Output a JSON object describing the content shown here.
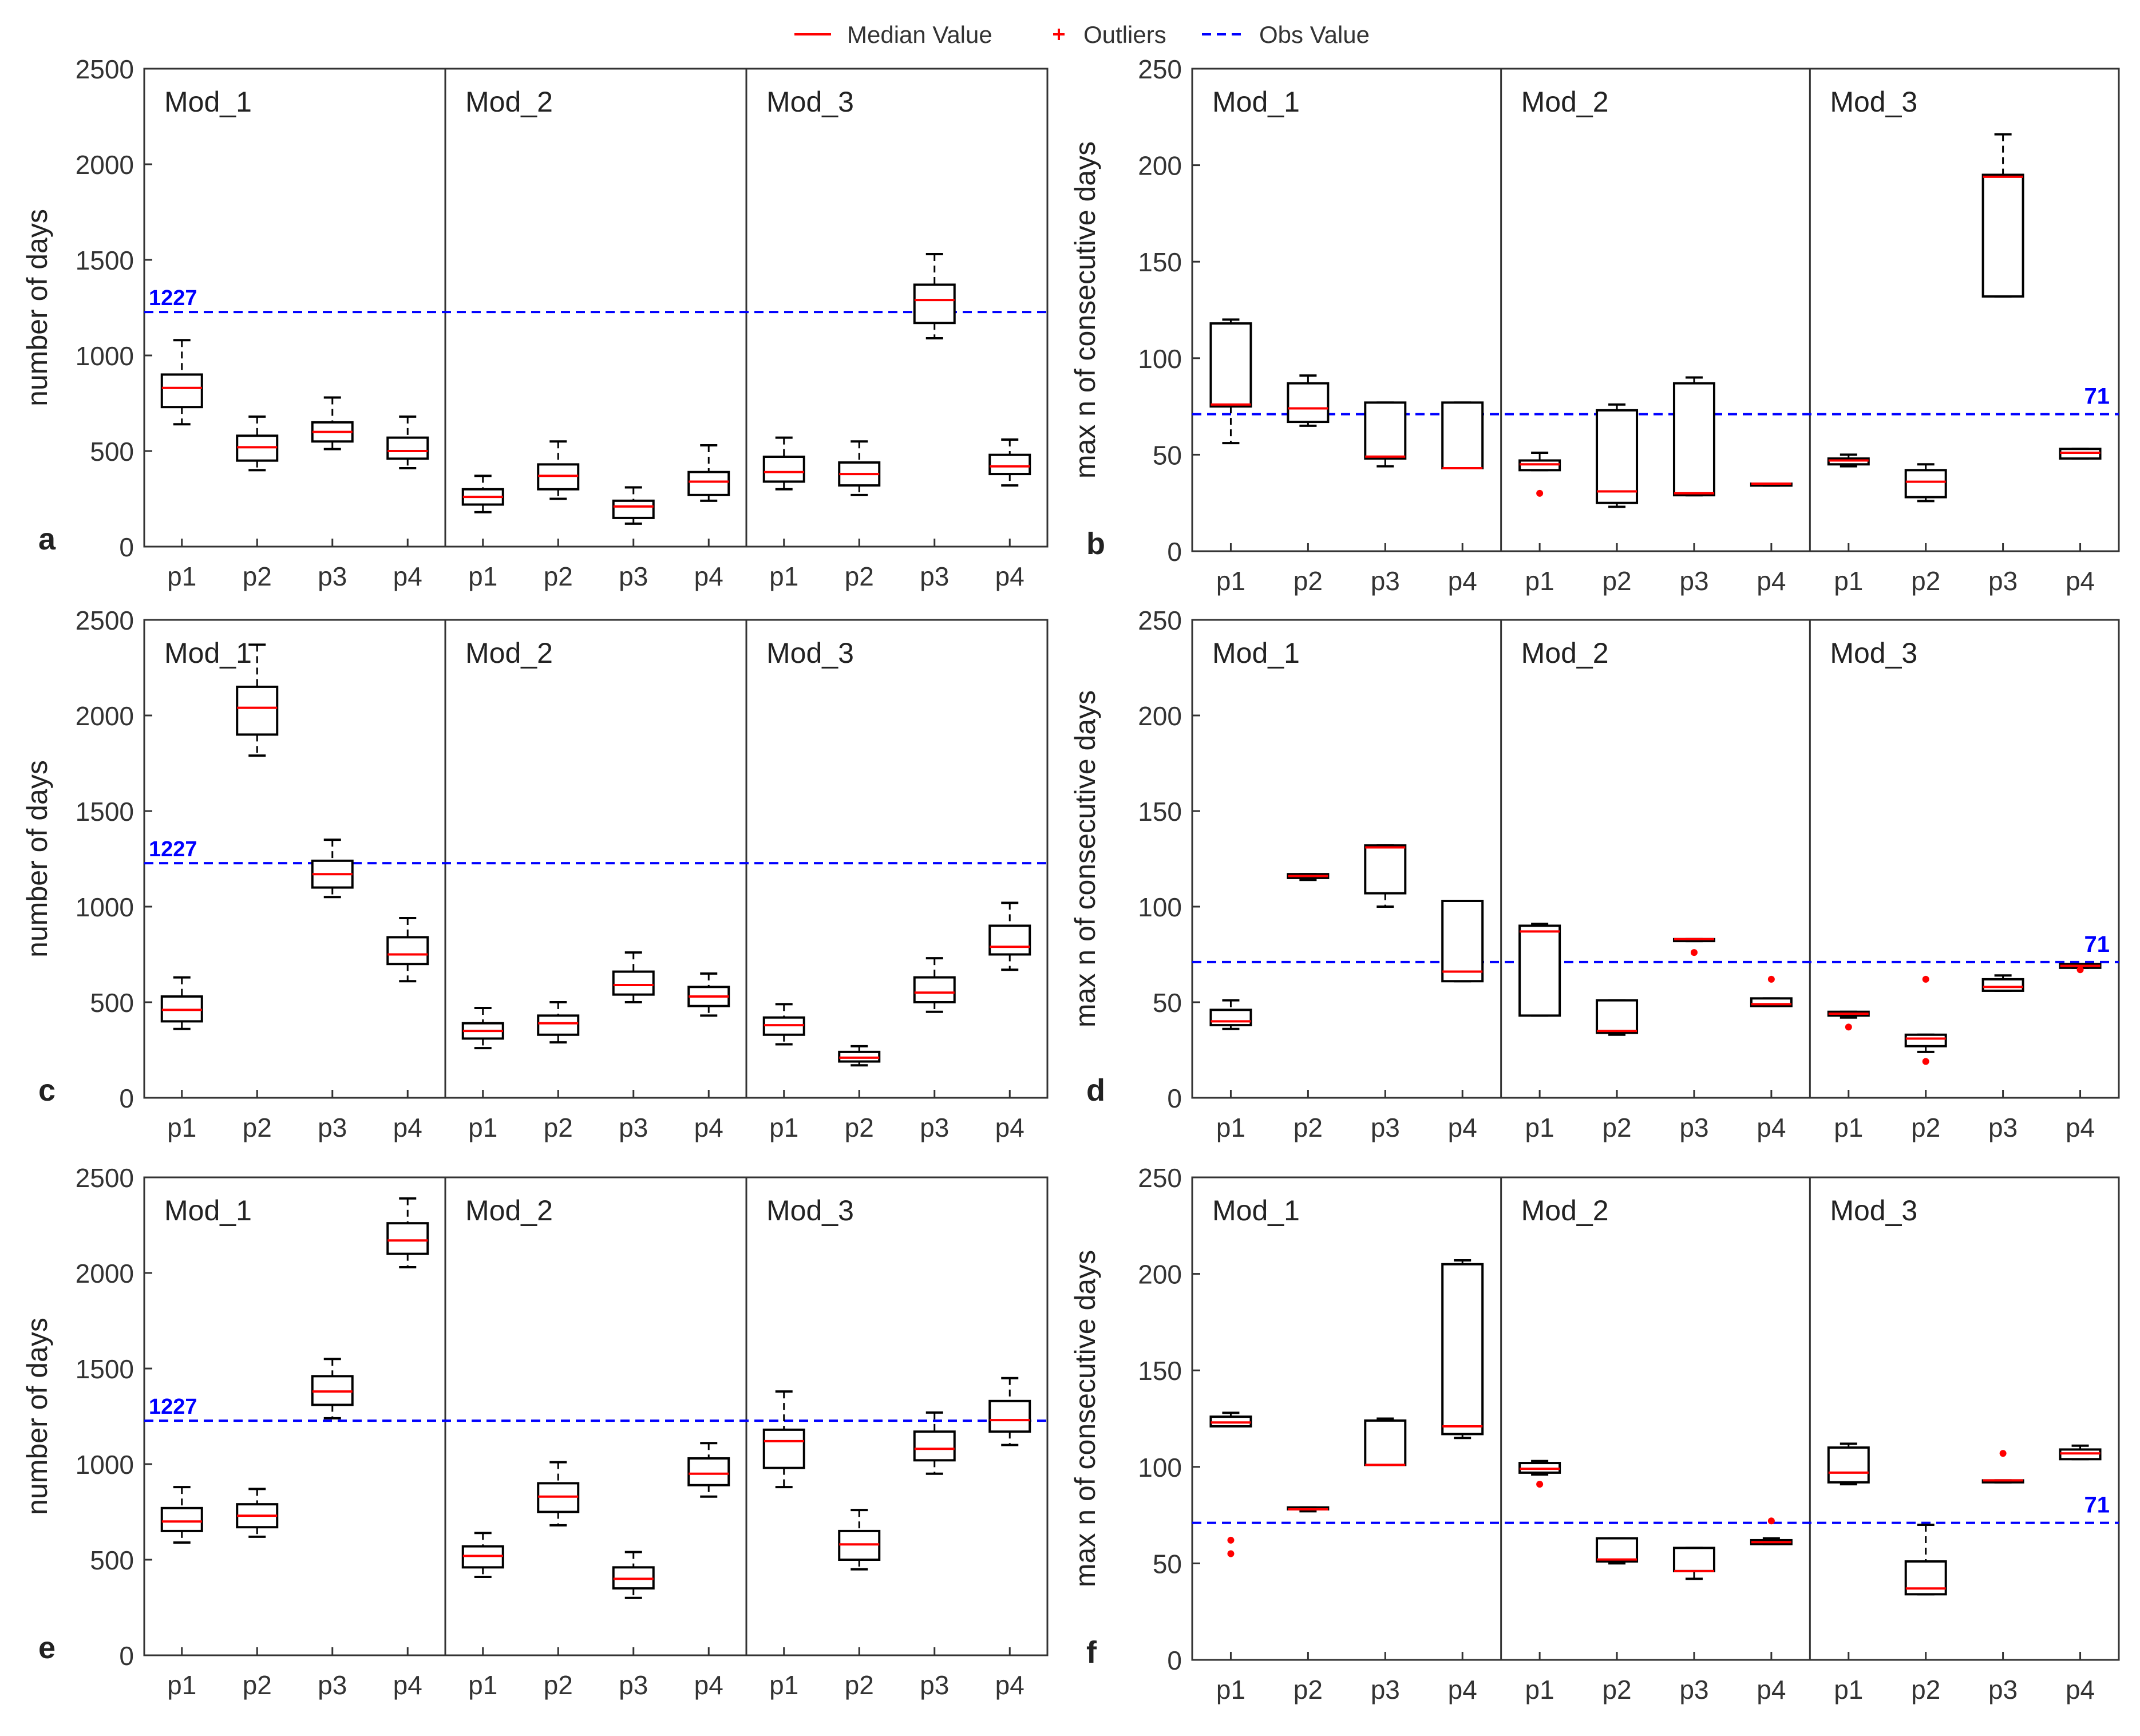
{
  "legend": {
    "placement": "top-center",
    "items": [
      {
        "label": "Median Value",
        "symbol": "line",
        "color": "#ff0000"
      },
      {
        "label": "Outliers",
        "symbol": "plus",
        "color": "#ff0000"
      },
      {
        "label": "Obs Value",
        "symbol": "dashed-line",
        "color": "#0000ff"
      }
    ]
  },
  "colors": {
    "box": "#000000",
    "median": "#ff0000",
    "outlier": "#ff0000",
    "obs": "#0000ff"
  },
  "chart_data": [
    {
      "panel": "a",
      "type": "box",
      "ylabel": "number of days",
      "ylim": [
        0,
        2500
      ],
      "yticks": [
        0,
        500,
        1000,
        1500,
        2000,
        2500
      ],
      "groups": [
        "Mod_1",
        "Mod_2",
        "Mod_3"
      ],
      "categories": [
        "p1",
        "p2",
        "p3",
        "p4"
      ],
      "obs": {
        "value": 1227,
        "label": "1227",
        "label_position": "left"
      },
      "boxes": [
        {
          "group": "Mod_1",
          "x": "p1",
          "whisker_low": 640,
          "q1": 730,
          "median": 830,
          "q3": 900,
          "whisker_high": 1080,
          "outliers": []
        },
        {
          "group": "Mod_1",
          "x": "p2",
          "whisker_low": 400,
          "q1": 450,
          "median": 520,
          "q3": 580,
          "whisker_high": 680,
          "outliers": []
        },
        {
          "group": "Mod_1",
          "x": "p3",
          "whisker_low": 510,
          "q1": 550,
          "median": 600,
          "q3": 650,
          "whisker_high": 780,
          "outliers": []
        },
        {
          "group": "Mod_1",
          "x": "p4",
          "whisker_low": 410,
          "q1": 460,
          "median": 500,
          "q3": 570,
          "whisker_high": 680,
          "outliers": []
        },
        {
          "group": "Mod_2",
          "x": "p1",
          "whisker_low": 180,
          "q1": 220,
          "median": 260,
          "q3": 300,
          "whisker_high": 370,
          "outliers": []
        },
        {
          "group": "Mod_2",
          "x": "p2",
          "whisker_low": 250,
          "q1": 300,
          "median": 370,
          "q3": 430,
          "whisker_high": 550,
          "outliers": []
        },
        {
          "group": "Mod_2",
          "x": "p3",
          "whisker_low": 120,
          "q1": 150,
          "median": 210,
          "q3": 240,
          "whisker_high": 310,
          "outliers": []
        },
        {
          "group": "Mod_2",
          "x": "p4",
          "whisker_low": 240,
          "q1": 270,
          "median": 340,
          "q3": 390,
          "whisker_high": 530,
          "outliers": []
        },
        {
          "group": "Mod_3",
          "x": "p1",
          "whisker_low": 300,
          "q1": 340,
          "median": 390,
          "q3": 470,
          "whisker_high": 570,
          "outliers": []
        },
        {
          "group": "Mod_3",
          "x": "p2",
          "whisker_low": 270,
          "q1": 320,
          "median": 380,
          "q3": 440,
          "whisker_high": 550,
          "outliers": []
        },
        {
          "group": "Mod_3",
          "x": "p3",
          "whisker_low": 1090,
          "q1": 1170,
          "median": 1290,
          "q3": 1370,
          "whisker_high": 1530,
          "outliers": []
        },
        {
          "group": "Mod_3",
          "x": "p4",
          "whisker_low": 320,
          "q1": 380,
          "median": 420,
          "q3": 480,
          "whisker_high": 560,
          "outliers": []
        }
      ]
    },
    {
      "panel": "b",
      "type": "box",
      "ylabel": "max n of consecutive days",
      "ylim": [
        0,
        250
      ],
      "yticks": [
        0,
        50,
        100,
        150,
        200,
        250
      ],
      "groups": [
        "Mod_1",
        "Mod_2",
        "Mod_3"
      ],
      "categories": [
        "p1",
        "p2",
        "p3",
        "p4"
      ],
      "obs": {
        "value": 71,
        "label": "71",
        "label_position": "right"
      },
      "boxes": [
        {
          "group": "Mod_1",
          "x": "p1",
          "whisker_low": 56,
          "q1": 75,
          "median": 76,
          "q3": 118,
          "whisker_high": 120,
          "outliers": []
        },
        {
          "group": "Mod_1",
          "x": "p2",
          "whisker_low": 65,
          "q1": 67,
          "median": 74,
          "q3": 87,
          "whisker_high": 91,
          "outliers": []
        },
        {
          "group": "Mod_1",
          "x": "p3",
          "whisker_low": 44,
          "q1": 48,
          "median": 49,
          "q3": 77,
          "whisker_high": 77,
          "outliers": []
        },
        {
          "group": "Mod_1",
          "x": "p4",
          "whisker_low": 43,
          "q1": 43,
          "median": 43,
          "q3": 77,
          "whisker_high": 77,
          "outliers": []
        },
        {
          "group": "Mod_2",
          "x": "p1",
          "whisker_low": 42,
          "q1": 42,
          "median": 45,
          "q3": 47,
          "whisker_high": 51,
          "outliers": [
            30
          ]
        },
        {
          "group": "Mod_2",
          "x": "p2",
          "whisker_low": 23,
          "q1": 25,
          "median": 31,
          "q3": 73,
          "whisker_high": 76,
          "outliers": []
        },
        {
          "group": "Mod_2",
          "x": "p3",
          "whisker_low": 29,
          "q1": 29,
          "median": 30,
          "q3": 87,
          "whisker_high": 90,
          "outliers": []
        },
        {
          "group": "Mod_2",
          "x": "p4",
          "whisker_low": 34,
          "q1": 34,
          "median": 35,
          "q3": 35,
          "whisker_high": 35,
          "outliers": []
        },
        {
          "group": "Mod_3",
          "x": "p1",
          "whisker_low": 44,
          "q1": 45,
          "median": 47,
          "q3": 48,
          "whisker_high": 50,
          "outliers": []
        },
        {
          "group": "Mod_3",
          "x": "p2",
          "whisker_low": 26,
          "q1": 28,
          "median": 36,
          "q3": 42,
          "whisker_high": 45,
          "outliers": []
        },
        {
          "group": "Mod_3",
          "x": "p3",
          "whisker_low": 132,
          "q1": 132,
          "median": 194,
          "q3": 195,
          "whisker_high": 216,
          "outliers": []
        },
        {
          "group": "Mod_3",
          "x": "p4",
          "whisker_low": 48,
          "q1": 48,
          "median": 51,
          "q3": 53,
          "whisker_high": 53,
          "outliers": []
        }
      ]
    },
    {
      "panel": "c",
      "type": "box",
      "ylabel": "number of days",
      "ylim": [
        0,
        2500
      ],
      "yticks": [
        0,
        500,
        1000,
        1500,
        2000,
        2500
      ],
      "groups": [
        "Mod_1",
        "Mod_2",
        "Mod_3"
      ],
      "categories": [
        "p1",
        "p2",
        "p3",
        "p4"
      ],
      "obs": {
        "value": 1227,
        "label": "1227",
        "label_position": "left"
      },
      "boxes": [
        {
          "group": "Mod_1",
          "x": "p1",
          "whisker_low": 360,
          "q1": 400,
          "median": 460,
          "q3": 530,
          "whisker_high": 630,
          "outliers": []
        },
        {
          "group": "Mod_1",
          "x": "p2",
          "whisker_low": 1790,
          "q1": 1900,
          "median": 2040,
          "q3": 2150,
          "whisker_high": 2370,
          "outliers": []
        },
        {
          "group": "Mod_1",
          "x": "p3",
          "whisker_low": 1050,
          "q1": 1100,
          "median": 1170,
          "q3": 1240,
          "whisker_high": 1350,
          "outliers": []
        },
        {
          "group": "Mod_1",
          "x": "p4",
          "whisker_low": 610,
          "q1": 700,
          "median": 750,
          "q3": 840,
          "whisker_high": 940,
          "outliers": []
        },
        {
          "group": "Mod_2",
          "x": "p1",
          "whisker_low": 260,
          "q1": 310,
          "median": 350,
          "q3": 390,
          "whisker_high": 470,
          "outliers": []
        },
        {
          "group": "Mod_2",
          "x": "p2",
          "whisker_low": 290,
          "q1": 330,
          "median": 390,
          "q3": 430,
          "whisker_high": 500,
          "outliers": []
        },
        {
          "group": "Mod_2",
          "x": "p3",
          "whisker_low": 500,
          "q1": 540,
          "median": 590,
          "q3": 660,
          "whisker_high": 760,
          "outliers": []
        },
        {
          "group": "Mod_2",
          "x": "p4",
          "whisker_low": 430,
          "q1": 480,
          "median": 530,
          "q3": 580,
          "whisker_high": 650,
          "outliers": []
        },
        {
          "group": "Mod_3",
          "x": "p1",
          "whisker_low": 280,
          "q1": 330,
          "median": 380,
          "q3": 420,
          "whisker_high": 490,
          "outliers": []
        },
        {
          "group": "Mod_3",
          "x": "p2",
          "whisker_low": 170,
          "q1": 190,
          "median": 210,
          "q3": 240,
          "whisker_high": 270,
          "outliers": []
        },
        {
          "group": "Mod_3",
          "x": "p3",
          "whisker_low": 450,
          "q1": 500,
          "median": 550,
          "q3": 630,
          "whisker_high": 730,
          "outliers": []
        },
        {
          "group": "Mod_3",
          "x": "p4",
          "whisker_low": 670,
          "q1": 750,
          "median": 790,
          "q3": 900,
          "whisker_high": 1020,
          "outliers": []
        }
      ]
    },
    {
      "panel": "d",
      "type": "box",
      "ylabel": "max n of consecutive days",
      "ylim": [
        0,
        250
      ],
      "yticks": [
        0,
        50,
        100,
        150,
        200,
        250
      ],
      "groups": [
        "Mod_1",
        "Mod_2",
        "Mod_3"
      ],
      "categories": [
        "p1",
        "p2",
        "p3",
        "p4"
      ],
      "obs": {
        "value": 71,
        "label": "71",
        "label_position": "right"
      },
      "boxes": [
        {
          "group": "Mod_1",
          "x": "p1",
          "whisker_low": 36,
          "q1": 38,
          "median": 40,
          "q3": 46,
          "whisker_high": 51,
          "outliers": []
        },
        {
          "group": "Mod_1",
          "x": "p2",
          "whisker_low": 114,
          "q1": 115,
          "median": 116,
          "q3": 117,
          "whisker_high": 117,
          "outliers": []
        },
        {
          "group": "Mod_1",
          "x": "p3",
          "whisker_low": 100,
          "q1": 107,
          "median": 131,
          "q3": 132,
          "whisker_high": 132,
          "outliers": []
        },
        {
          "group": "Mod_1",
          "x": "p4",
          "whisker_low": 61,
          "q1": 61,
          "median": 66,
          "q3": 103,
          "whisker_high": 103,
          "outliers": []
        },
        {
          "group": "Mod_2",
          "x": "p1",
          "whisker_low": 43,
          "q1": 43,
          "median": 87,
          "q3": 90,
          "whisker_high": 91,
          "outliers": []
        },
        {
          "group": "Mod_2",
          "x": "p2",
          "whisker_low": 33,
          "q1": 34,
          "median": 35,
          "q3": 51,
          "whisker_high": 51,
          "outliers": []
        },
        {
          "group": "Mod_2",
          "x": "p3",
          "whisker_low": 82,
          "q1": 82,
          "median": 83,
          "q3": 83,
          "whisker_high": 83,
          "outliers": [
            76
          ]
        },
        {
          "group": "Mod_2",
          "x": "p4",
          "whisker_low": 48,
          "q1": 48,
          "median": 49,
          "q3": 52,
          "whisker_high": 52,
          "outliers": [
            62
          ]
        },
        {
          "group": "Mod_3",
          "x": "p1",
          "whisker_low": 42,
          "q1": 43,
          "median": 44,
          "q3": 45,
          "whisker_high": 45,
          "outliers": [
            37
          ]
        },
        {
          "group": "Mod_3",
          "x": "p2",
          "whisker_low": 24,
          "q1": 27,
          "median": 31,
          "q3": 33,
          "whisker_high": 33,
          "outliers": [
            62,
            19
          ]
        },
        {
          "group": "Mod_3",
          "x": "p3",
          "whisker_low": 56,
          "q1": 56,
          "median": 58,
          "q3": 62,
          "whisker_high": 64,
          "outliers": []
        },
        {
          "group": "Mod_3",
          "x": "p4",
          "whisker_low": 68,
          "q1": 68,
          "median": 69,
          "q3": 70,
          "whisker_high": 70,
          "outliers": [
            67
          ]
        }
      ]
    },
    {
      "panel": "e",
      "type": "box",
      "ylabel": "number of days",
      "ylim": [
        0,
        2500
      ],
      "yticks": [
        0,
        500,
        1000,
        1500,
        2000,
        2500
      ],
      "groups": [
        "Mod_1",
        "Mod_2",
        "Mod_3"
      ],
      "categories": [
        "p1",
        "p2",
        "p3",
        "p4"
      ],
      "obs": {
        "value": 1227,
        "label": "1227",
        "label_position": "left"
      },
      "boxes": [
        {
          "group": "Mod_1",
          "x": "p1",
          "whisker_low": 590,
          "q1": 650,
          "median": 700,
          "q3": 770,
          "whisker_high": 880,
          "outliers": []
        },
        {
          "group": "Mod_1",
          "x": "p2",
          "whisker_low": 620,
          "q1": 670,
          "median": 730,
          "q3": 790,
          "whisker_high": 870,
          "outliers": []
        },
        {
          "group": "Mod_1",
          "x": "p3",
          "whisker_low": 1240,
          "q1": 1310,
          "median": 1380,
          "q3": 1460,
          "whisker_high": 1550,
          "outliers": []
        },
        {
          "group": "Mod_1",
          "x": "p4",
          "whisker_low": 2030,
          "q1": 2100,
          "median": 2170,
          "q3": 2260,
          "whisker_high": 2390,
          "outliers": []
        },
        {
          "group": "Mod_2",
          "x": "p1",
          "whisker_low": 410,
          "q1": 460,
          "median": 520,
          "q3": 570,
          "whisker_high": 640,
          "outliers": []
        },
        {
          "group": "Mod_2",
          "x": "p2",
          "whisker_low": 680,
          "q1": 750,
          "median": 830,
          "q3": 900,
          "whisker_high": 1010,
          "outliers": []
        },
        {
          "group": "Mod_2",
          "x": "p3",
          "whisker_low": 300,
          "q1": 350,
          "median": 400,
          "q3": 460,
          "whisker_high": 540,
          "outliers": []
        },
        {
          "group": "Mod_2",
          "x": "p4",
          "whisker_low": 830,
          "q1": 890,
          "median": 950,
          "q3": 1030,
          "whisker_high": 1110,
          "outliers": []
        },
        {
          "group": "Mod_3",
          "x": "p1",
          "whisker_low": 880,
          "q1": 980,
          "median": 1120,
          "q3": 1180,
          "whisker_high": 1380,
          "outliers": []
        },
        {
          "group": "Mod_3",
          "x": "p2",
          "whisker_low": 450,
          "q1": 500,
          "median": 580,
          "q3": 650,
          "whisker_high": 760,
          "outliers": []
        },
        {
          "group": "Mod_3",
          "x": "p3",
          "whisker_low": 950,
          "q1": 1020,
          "median": 1080,
          "q3": 1170,
          "whisker_high": 1270,
          "outliers": []
        },
        {
          "group": "Mod_3",
          "x": "p4",
          "whisker_low": 1100,
          "q1": 1170,
          "median": 1230,
          "q3": 1330,
          "whisker_high": 1450,
          "outliers": []
        }
      ]
    },
    {
      "panel": "f",
      "type": "box",
      "ylabel": "max n of consecutive days",
      "ylim": [
        0,
        250
      ],
      "yticks": [
        0,
        50,
        100,
        150,
        200,
        250
      ],
      "groups": [
        "Mod_1",
        "Mod_2",
        "Mod_3"
      ],
      "categories": [
        "p1",
        "p2",
        "p3",
        "p4"
      ],
      "obs": {
        "value": 71,
        "label": "71",
        "label_position": "right"
      },
      "boxes": [
        {
          "group": "Mod_1",
          "x": "p1",
          "whisker_low": 121,
          "q1": 121,
          "median": 123,
          "q3": 126,
          "whisker_high": 128,
          "outliers": [
            62,
            55
          ]
        },
        {
          "group": "Mod_1",
          "x": "p2",
          "whisker_low": 77,
          "q1": 78,
          "median": 78,
          "q3": 79,
          "whisker_high": 79,
          "outliers": []
        },
        {
          "group": "Mod_1",
          "x": "p3",
          "whisker_low": 101,
          "q1": 101,
          "median": 101,
          "q3": 124,
          "whisker_high": 125,
          "outliers": []
        },
        {
          "group": "Mod_1",
          "x": "p4",
          "whisker_low": 115,
          "q1": 117,
          "median": 121,
          "q3": 205,
          "whisker_high": 207,
          "outliers": []
        },
        {
          "group": "Mod_2",
          "x": "p1",
          "whisker_low": 96,
          "q1": 97,
          "median": 99,
          "q3": 102,
          "whisker_high": 103,
          "outliers": [
            91
          ]
        },
        {
          "group": "Mod_2",
          "x": "p2",
          "whisker_low": 50,
          "q1": 51,
          "median": 52,
          "q3": 63,
          "whisker_high": 63,
          "outliers": []
        },
        {
          "group": "Mod_2",
          "x": "p3",
          "whisker_low": 42,
          "q1": 46,
          "median": 46,
          "q3": 58,
          "whisker_high": 58,
          "outliers": []
        },
        {
          "group": "Mod_2",
          "x": "p4",
          "whisker_low": 60,
          "q1": 60,
          "median": 61,
          "q3": 62,
          "whisker_high": 63,
          "outliers": [
            72
          ]
        },
        {
          "group": "Mod_3",
          "x": "p1",
          "whisker_low": 91,
          "q1": 92,
          "median": 97,
          "q3": 110,
          "whisker_high": 112,
          "outliers": []
        },
        {
          "group": "Mod_3",
          "x": "p2",
          "whisker_low": 34,
          "q1": 34,
          "median": 37,
          "q3": 51,
          "whisker_high": 70,
          "outliers": []
        },
        {
          "group": "Mod_3",
          "x": "p3",
          "whisker_low": 92,
          "q1": 92,
          "median": 93,
          "q3": 93,
          "whisker_high": 93,
          "outliers": [
            107
          ]
        },
        {
          "group": "Mod_3",
          "x": "p4",
          "whisker_low": 104,
          "q1": 104,
          "median": 107,
          "q3": 109,
          "whisker_high": 111,
          "outliers": []
        }
      ]
    }
  ]
}
